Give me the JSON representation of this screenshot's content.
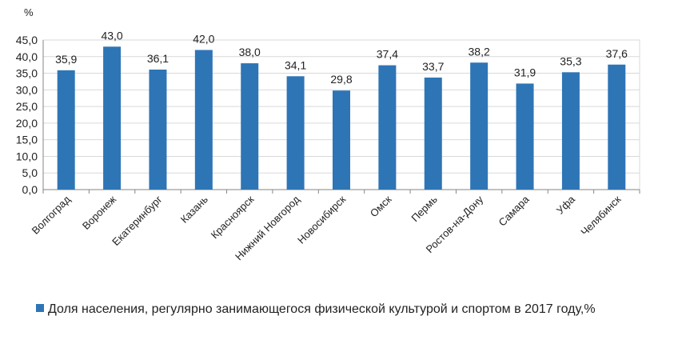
{
  "chart_data": {
    "type": "bar",
    "y_unit_label": "%",
    "categories": [
      "Волгоград",
      "Воронеж",
      "Екатеринбург",
      "Казань",
      "Красноярск",
      "Нижний Новгород",
      "Новосибирск",
      "Омск",
      "Пермь",
      "Ростов-на-Дону",
      "Самара",
      "Уфа",
      "Челябинск"
    ],
    "series": [
      {
        "name": "Доля населения, регулярно занимающегося физической культурой  и спортом в 2017 году,%",
        "values": [
          35.9,
          43.0,
          36.1,
          42.0,
          38.0,
          34.1,
          29.8,
          37.4,
          33.7,
          38.2,
          31.9,
          35.3,
          37.6
        ],
        "labels": [
          "35,9",
          "43,0",
          "36,1",
          "42,0",
          "38,0",
          "34,1",
          "29,8",
          "37,4",
          "33,7",
          "38,2",
          "31,9",
          "35,3",
          "37,6"
        ]
      }
    ],
    "ylim": [
      0,
      45
    ],
    "yticks": [
      0,
      5,
      10,
      15,
      20,
      25,
      30,
      35,
      40,
      45
    ],
    "ytick_labels": [
      "0,0",
      "5,0",
      "10,0",
      "15,0",
      "20,0",
      "25,0",
      "30,0",
      "35,0",
      "40,0",
      "45,0"
    ],
    "grid": true,
    "legend_position": "bottom",
    "colors": {
      "bar": "#2e75b6",
      "grid": "#d9d9d9",
      "axis": "#868686"
    }
  }
}
